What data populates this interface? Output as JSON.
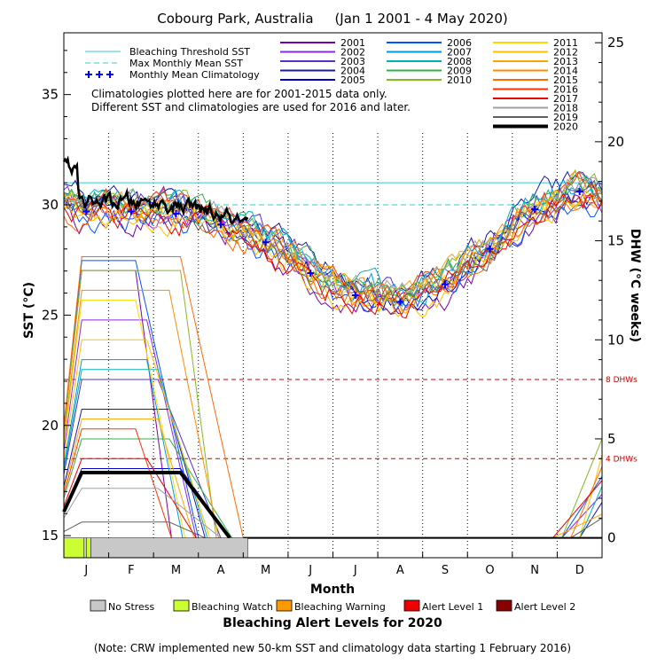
{
  "chart_data": {
    "type": "line",
    "title": "Cobourg Park, Australia     (Jan 1 2001 - 4 May 2020)",
    "xlabel": "Month",
    "ylabel_left": "SST (°C)",
    "ylabel_right": "DHW (°C weeks)",
    "x_categories": [
      "J",
      "F",
      "M",
      "A",
      "M",
      "J",
      "J",
      "A",
      "S",
      "O",
      "N",
      "D"
    ],
    "sst_ticks": [
      15,
      20,
      25,
      30,
      35
    ],
    "dhw_ticks": [
      0,
      5,
      10,
      15,
      20,
      25
    ],
    "sst_range": [
      14,
      37.8
    ],
    "dhw_range": [
      -1,
      25.5
    ],
    "bleaching_threshold_sst": 31.0,
    "max_monthly_mean_sst": 30.0,
    "monthly_mean_climatology": [
      29.7,
      29.7,
      29.6,
      29.1,
      28.3,
      26.9,
      25.9,
      25.6,
      26.4,
      28.0,
      29.8,
      30.6
    ],
    "reference_lines": [
      {
        "label": "8 DHWs",
        "dhw": 8
      },
      {
        "label": "4 DHWs",
        "dhw": 4
      }
    ],
    "climatology_note": [
      "Climatologies plotted here are for 2001-2015 data only.",
      "Different SST and climatologies are used for 2016 and later."
    ],
    "legend_left": [
      {
        "label": "Bleaching Threshold SST",
        "color": "#33cccc",
        "style": "solid"
      },
      {
        "label": "Max Monthly Mean SST",
        "color": "#33cccc",
        "style": "dashed"
      },
      {
        "label": "Monthly Mean Climatology",
        "color": "#0000ff",
        "style": "plus"
      }
    ],
    "series": [
      {
        "name": "2001",
        "color": "#7a00a8"
      },
      {
        "name": "2002",
        "color": "#8a2be2"
      },
      {
        "name": "2003",
        "color": "#5a2dc8"
      },
      {
        "name": "2004",
        "color": "#1a1aa8"
      },
      {
        "name": "2005",
        "color": "#0000cc"
      },
      {
        "name": "2006",
        "color": "#0055ff"
      },
      {
        "name": "2007",
        "color": "#0099e6"
      },
      {
        "name": "2008",
        "color": "#00b2b2"
      },
      {
        "name": "2009",
        "color": "#2db34a"
      },
      {
        "name": "2010",
        "color": "#88b820"
      },
      {
        "name": "2011",
        "color": "#ffd700"
      },
      {
        "name": "2012",
        "color": "#ffc000"
      },
      {
        "name": "2013",
        "color": "#ffa500"
      },
      {
        "name": "2014",
        "color": "#ff8c00"
      },
      {
        "name": "2015",
        "color": "#ff6a00"
      },
      {
        "name": "2016",
        "color": "#ff3300"
      },
      {
        "name": "2017",
        "color": "#ee0000"
      },
      {
        "name": "2018",
        "color": "#a0a0a0"
      },
      {
        "name": "2019",
        "color": "#606060"
      },
      {
        "name": "2020",
        "color": "#000000"
      }
    ],
    "alert_bar_2020": [
      {
        "level": "Bleaching Watch",
        "from_month": 0.0,
        "to_month": 0.45
      },
      {
        "level": "No Stress",
        "from_month": 0.45,
        "to_month": 0.5
      },
      {
        "level": "Bleaching Watch",
        "from_month": 0.5,
        "to_month": 0.6
      },
      {
        "level": "No Stress",
        "from_month": 0.6,
        "to_month": 4.1
      }
    ],
    "alert_legend": [
      {
        "label": "No Stress",
        "color": "#c8c8c8"
      },
      {
        "label": "Bleaching Watch",
        "color": "#ccff33"
      },
      {
        "label": "Bleaching Warning",
        "color": "#ff9900"
      },
      {
        "label": "Alert Level 1",
        "color": "#ee0000"
      },
      {
        "label": "Alert Level 2",
        "color": "#880000"
      }
    ],
    "alert_title": "Bleaching Alert Levels for 2020",
    "footnote": "(Note: CRW implemented new 50-km SST and climatology data starting 1 February 2016)"
  }
}
